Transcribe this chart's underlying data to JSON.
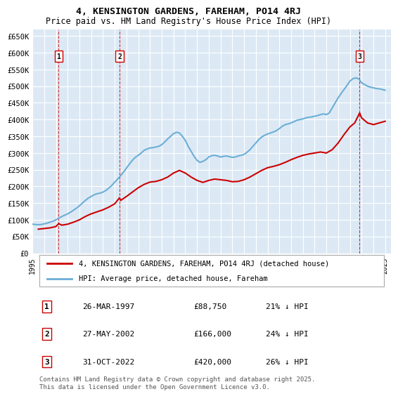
{
  "title": "4, KENSINGTON GARDENS, FAREHAM, PO14 4RJ",
  "subtitle": "Price paid vs. HM Land Registry's House Price Index (HPI)",
  "background_color": "#ffffff",
  "plot_bg_color": "#dce9f5",
  "grid_color": "#ffffff",
  "ylabel": "",
  "ylim": [
    0,
    670000
  ],
  "yticks": [
    0,
    50000,
    100000,
    150000,
    200000,
    250000,
    300000,
    350000,
    400000,
    450000,
    500000,
    550000,
    600000,
    650000
  ],
  "ytick_labels": [
    "£0",
    "£50K",
    "£100K",
    "£150K",
    "£200K",
    "£250K",
    "£300K",
    "£350K",
    "£400K",
    "£450K",
    "£500K",
    "£550K",
    "£600K",
    "£650K"
  ],
  "xlim_start": 1995.0,
  "xlim_end": 2025.5,
  "hpi_color": "#6baed6",
  "price_color": "#cc0000",
  "sale_marker_color": "#cc0000",
  "vline_color": "#cc0000",
  "transaction_box_color": "#cc0000",
  "legend_label_price": "4, KENSINGTON GARDENS, FAREHAM, PO14 4RJ (detached house)",
  "legend_label_hpi": "HPI: Average price, detached house, Fareham",
  "transactions": [
    {
      "num": 1,
      "date": "26-MAR-1997",
      "price": 88750,
      "pct": "21% ↓ HPI",
      "year": 1997.23
    },
    {
      "num": 2,
      "date": "27-MAY-2002",
      "price": 166000,
      "pct": "24% ↓ HPI",
      "year": 2002.41
    },
    {
      "num": 3,
      "date": "31-OCT-2022",
      "price": 420000,
      "pct": "26% ↓ HPI",
      "year": 2022.83
    }
  ],
  "footer": "Contains HM Land Registry data © Crown copyright and database right 2025.\nThis data is licensed under the Open Government Licence v3.0.",
  "hpi_data_x": [
    1995.0,
    1995.25,
    1995.5,
    1995.75,
    1996.0,
    1996.25,
    1996.5,
    1996.75,
    1997.0,
    1997.25,
    1997.5,
    1997.75,
    1998.0,
    1998.25,
    1998.5,
    1998.75,
    1999.0,
    1999.25,
    1999.5,
    1999.75,
    2000.0,
    2000.25,
    2000.5,
    2000.75,
    2001.0,
    2001.25,
    2001.5,
    2001.75,
    2002.0,
    2002.25,
    2002.5,
    2002.75,
    2003.0,
    2003.25,
    2003.5,
    2003.75,
    2004.0,
    2004.25,
    2004.5,
    2004.75,
    2005.0,
    2005.25,
    2005.5,
    2005.75,
    2006.0,
    2006.25,
    2006.5,
    2006.75,
    2007.0,
    2007.25,
    2007.5,
    2007.75,
    2008.0,
    2008.25,
    2008.5,
    2008.75,
    2009.0,
    2009.25,
    2009.5,
    2009.75,
    2010.0,
    2010.25,
    2010.5,
    2010.75,
    2011.0,
    2011.25,
    2011.5,
    2011.75,
    2012.0,
    2012.25,
    2012.5,
    2012.75,
    2013.0,
    2013.25,
    2013.5,
    2013.75,
    2014.0,
    2014.25,
    2014.5,
    2014.75,
    2015.0,
    2015.25,
    2015.5,
    2015.75,
    2016.0,
    2016.25,
    2016.5,
    2016.75,
    2017.0,
    2017.25,
    2017.5,
    2017.75,
    2018.0,
    2018.25,
    2018.5,
    2018.75,
    2019.0,
    2019.25,
    2019.5,
    2019.75,
    2020.0,
    2020.25,
    2020.5,
    2020.75,
    2021.0,
    2021.25,
    2021.5,
    2021.75,
    2022.0,
    2022.25,
    2022.5,
    2022.75,
    2023.0,
    2023.25,
    2023.5,
    2023.75,
    2024.0,
    2024.25,
    2024.5,
    2024.75,
    2025.0
  ],
  "hpi_data_y": [
    87000,
    86000,
    85500,
    86000,
    88000,
    90000,
    93000,
    96000,
    100000,
    105000,
    110000,
    114000,
    118000,
    123000,
    129000,
    135000,
    142000,
    150000,
    158000,
    165000,
    170000,
    175000,
    178000,
    180000,
    183000,
    188000,
    195000,
    203000,
    213000,
    222000,
    232000,
    243000,
    255000,
    267000,
    278000,
    287000,
    293000,
    300000,
    308000,
    312000,
    315000,
    316000,
    318000,
    320000,
    325000,
    333000,
    342000,
    350000,
    358000,
    362000,
    360000,
    350000,
    338000,
    320000,
    305000,
    290000,
    278000,
    272000,
    275000,
    280000,
    288000,
    292000,
    293000,
    291000,
    288000,
    290000,
    291000,
    289000,
    287000,
    288000,
    291000,
    293000,
    296000,
    302000,
    310000,
    320000,
    330000,
    340000,
    348000,
    353000,
    357000,
    360000,
    363000,
    367000,
    373000,
    380000,
    385000,
    387000,
    390000,
    394000,
    398000,
    400000,
    402000,
    405000,
    407000,
    408000,
    410000,
    412000,
    415000,
    417000,
    415000,
    420000,
    435000,
    450000,
    465000,
    478000,
    490000,
    502000,
    515000,
    522000,
    525000,
    522000,
    510000,
    505000,
    500000,
    497000,
    495000,
    493000,
    492000,
    490000,
    488000
  ],
  "price_data_x": [
    1995.5,
    1996.0,
    1996.5,
    1997.0,
    1997.23,
    1997.5,
    1998.0,
    1998.5,
    1999.0,
    1999.5,
    2000.0,
    2000.5,
    2001.0,
    2001.5,
    2002.0,
    2002.41,
    2002.5,
    2003.0,
    2003.5,
    2004.0,
    2004.5,
    2005.0,
    2005.5,
    2006.0,
    2006.5,
    2007.0,
    2007.5,
    2008.0,
    2008.5,
    2009.0,
    2009.5,
    2010.0,
    2010.5,
    2011.0,
    2011.5,
    2012.0,
    2012.5,
    2013.0,
    2013.5,
    2014.0,
    2014.5,
    2015.0,
    2015.5,
    2016.0,
    2016.5,
    2017.0,
    2017.5,
    2018.0,
    2018.5,
    2019.0,
    2019.5,
    2020.0,
    2020.5,
    2021.0,
    2021.5,
    2022.0,
    2022.41,
    2022.83,
    2023.0,
    2023.5,
    2024.0,
    2024.5,
    2025.0
  ],
  "price_data_y": [
    72000,
    74000,
    76000,
    80000,
    88750,
    84000,
    87000,
    93000,
    100000,
    110000,
    118000,
    124000,
    130000,
    138000,
    148000,
    166000,
    158000,
    170000,
    183000,
    196000,
    206000,
    213000,
    215000,
    220000,
    228000,
    240000,
    248000,
    240000,
    228000,
    218000,
    212000,
    218000,
    222000,
    220000,
    218000,
    214000,
    215000,
    220000,
    228000,
    238000,
    248000,
    256000,
    260000,
    265000,
    272000,
    280000,
    287000,
    293000,
    297000,
    300000,
    303000,
    300000,
    310000,
    330000,
    355000,
    378000,
    390000,
    420000,
    405000,
    390000,
    385000,
    390000,
    395000
  ]
}
